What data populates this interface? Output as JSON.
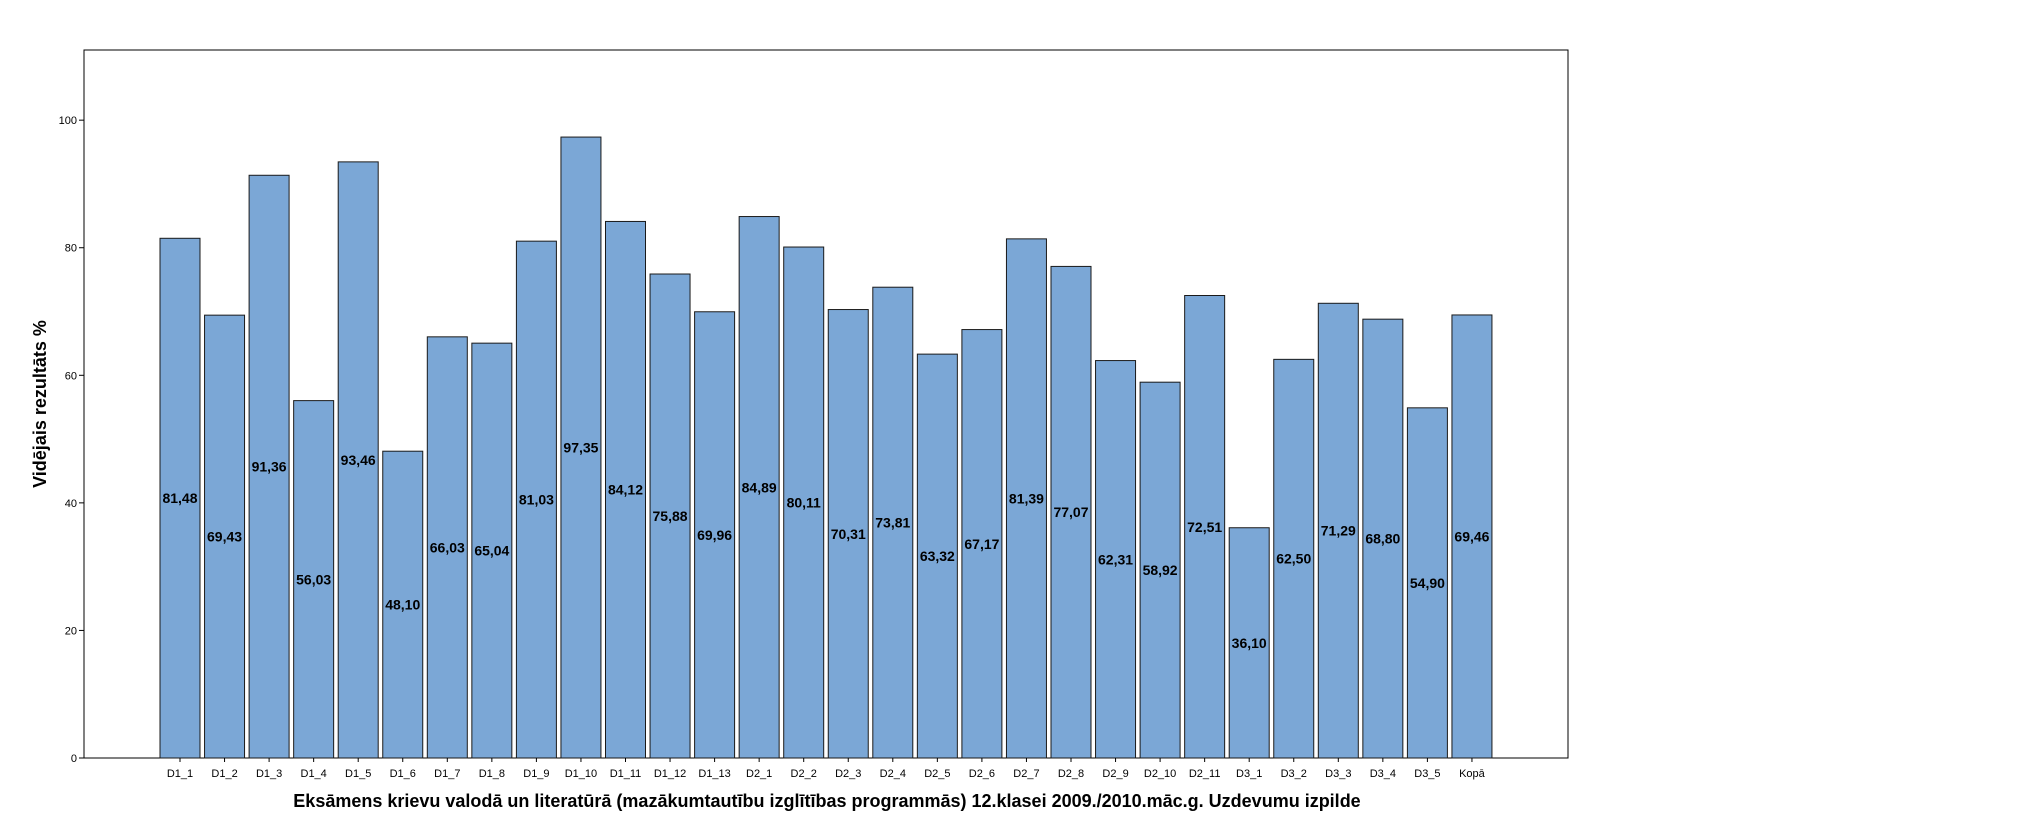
{
  "chart_data": {
    "type": "bar",
    "title": "",
    "xlabel": "Eksāmens krievu valodā un literatūrā (mazākumtautību izglītības programmās) 12.klasei 2009./2010.māc.g. Uzdevumu izpilde",
    "ylabel": "Vidējais rezultāts %",
    "ylim": [
      0,
      111
    ],
    "yticks": [
      0,
      20,
      40,
      60,
      80,
      100
    ],
    "grid": false,
    "bar_color": "#7BA7D6",
    "bar_edge_color": "#1a1a1a",
    "categories": [
      "D1_1",
      "D1_2",
      "D1_3",
      "D1_4",
      "D1_5",
      "D1_6",
      "D1_7",
      "D1_8",
      "D1_9",
      "D1_10",
      "D1_11",
      "D1_12",
      "D1_13",
      "D2_1",
      "D2_2",
      "D2_3",
      "D2_4",
      "D2_5",
      "D2_6",
      "D2_7",
      "D2_8",
      "D2_9",
      "D2_10",
      "D2_11",
      "D3_1",
      "D3_2",
      "D3_3",
      "D3_4",
      "D3_5",
      "Kopā"
    ],
    "values": [
      81.48,
      69.43,
      91.36,
      56.03,
      93.46,
      48.1,
      66.03,
      65.04,
      81.03,
      97.35,
      84.12,
      75.88,
      69.96,
      84.89,
      80.11,
      70.31,
      73.81,
      63.32,
      67.17,
      81.39,
      77.07,
      62.31,
      58.92,
      72.51,
      36.1,
      62.5,
      71.29,
      68.8,
      54.9,
      69.46
    ],
    "value_labels": [
      "81,48",
      "69,43",
      "91,36",
      "56,03",
      "93,46",
      "48,10",
      "66,03",
      "65,04",
      "81,03",
      "97,35",
      "84,12",
      "75,88",
      "69,96",
      "84,89",
      "80,11",
      "70,31",
      "73,81",
      "63,32",
      "67,17",
      "81,39",
      "77,07",
      "62,31",
      "58,92",
      "72,51",
      "36,10",
      "62,50",
      "71,29",
      "68,80",
      "54,90",
      "69,46"
    ]
  }
}
